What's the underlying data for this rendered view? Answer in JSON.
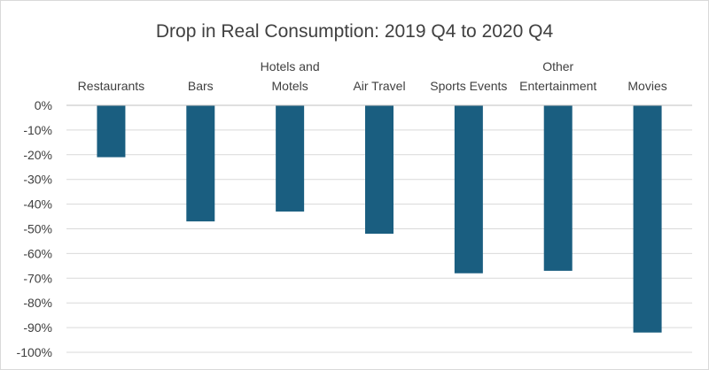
{
  "chart_data": {
    "type": "bar",
    "title": "Drop in Real Consumption: 2019 Q4 to 2020 Q4",
    "xlabel": "",
    "ylabel": "",
    "categories": [
      [
        "Restaurants"
      ],
      [
        "Bars"
      ],
      [
        "Hotels and",
        "Motels"
      ],
      [
        "Air Travel"
      ],
      [
        "Sports Events"
      ],
      [
        "Other",
        "Entertainment"
      ],
      [
        "Movies"
      ]
    ],
    "values": [
      -0.21,
      -0.47,
      -0.43,
      -0.52,
      -0.68,
      -0.67,
      -0.92
    ],
    "ylim": [
      -1.0,
      0
    ],
    "yticks": [
      0,
      -0.1,
      -0.2,
      -0.3,
      -0.4,
      -0.5,
      -0.6,
      -0.7,
      -0.8,
      -0.9,
      -1.0
    ],
    "ytick_labels": [
      "0%",
      "-10%",
      "-20%",
      "-30%",
      "-40%",
      "-50%",
      "-60%",
      "-70%",
      "-80%",
      "-90%",
      "-100%"
    ],
    "grid": true,
    "legend": "none",
    "bar_color": "#1a5e80"
  }
}
